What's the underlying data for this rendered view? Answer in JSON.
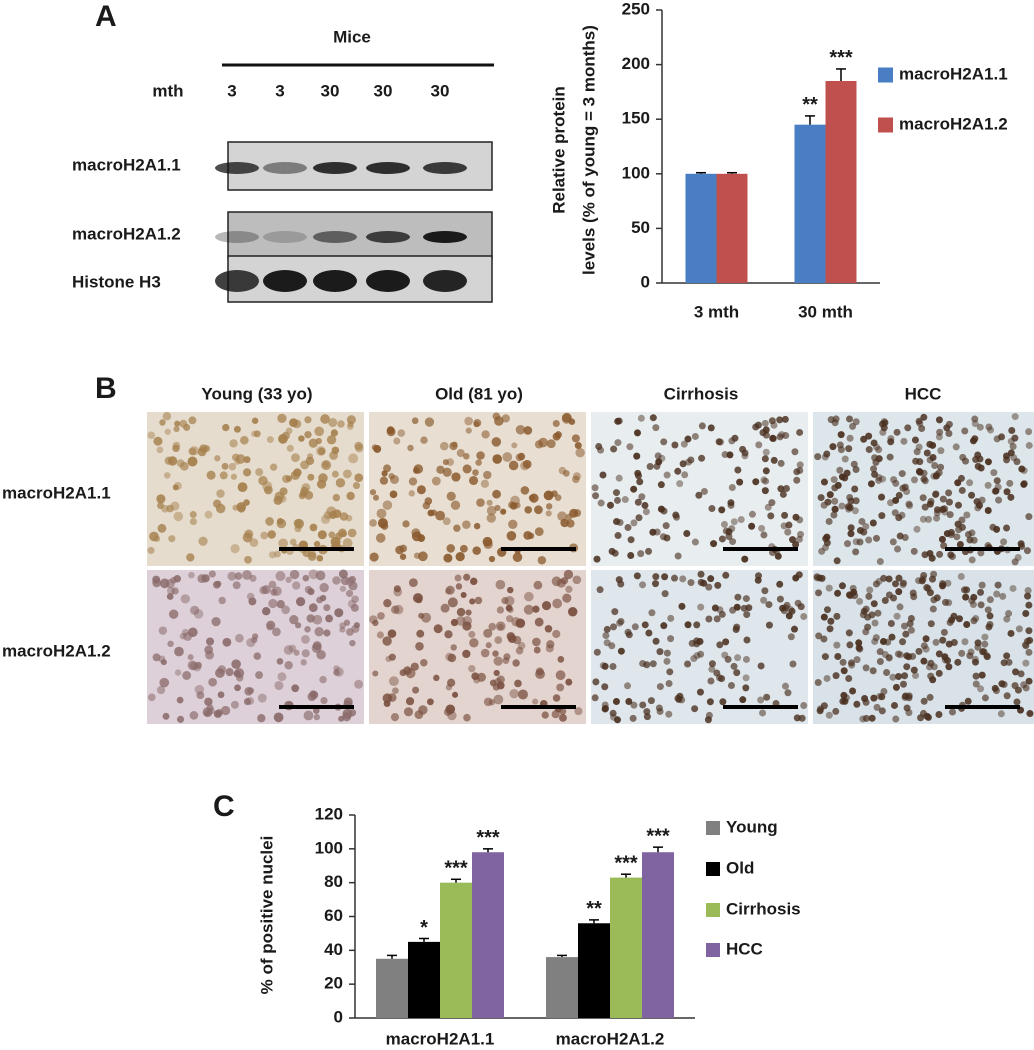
{
  "panel_a": {
    "label": "A",
    "group_header": "Mice",
    "lane_header": "mth",
    "lanes": [
      "3",
      "3",
      "30",
      "30",
      "30"
    ],
    "blot_rows": [
      "macroH2A1.1",
      "macroH2A1.2",
      "Histone H3"
    ]
  },
  "panel_b": {
    "label": "B",
    "columns": [
      "Young (33 yo)",
      "Old (81 yo)",
      "Cirrhosis",
      "HCC"
    ],
    "rows": [
      "macroH2A1.1",
      "macroH2A1.2"
    ]
  },
  "panel_c": {
    "label": "C"
  },
  "chart_data": [
    {
      "type": "bar",
      "y_label": [
        "Relative protein",
        "levels (% of young = 3 months)"
      ],
      "categories": [
        "3 mth",
        "30 mth"
      ],
      "series": [
        {
          "name": "macroH2A1.1",
          "color": "#4a7ec4",
          "values": [
            100,
            145
          ],
          "errors": [
            1,
            8
          ],
          "annotations": [
            null,
            "**"
          ]
        },
        {
          "name": "macroH2A1.2",
          "color": "#c0504d",
          "values": [
            100,
            185
          ],
          "errors": [
            1,
            11
          ],
          "annotations": [
            null,
            "***"
          ]
        }
      ],
      "ylim": [
        0,
        250
      ],
      "yticks": [
        0,
        50,
        100,
        150,
        200,
        250
      ],
      "legend": "right"
    },
    {
      "type": "bar",
      "y_label": [
        "% of positive nuclei"
      ],
      "categories": [
        "macroH2A1.1",
        "macroH2A1.2"
      ],
      "series": [
        {
          "name": "Young",
          "color": "#808080",
          "values": [
            35,
            36
          ],
          "errors": [
            2,
            1
          ],
          "annotations": [
            null,
            null
          ]
        },
        {
          "name": "Old",
          "color": "#000000",
          "values": [
            45,
            56
          ],
          "errors": [
            2,
            2
          ],
          "annotations": [
            "*",
            "**"
          ]
        },
        {
          "name": "Cirrhosis",
          "color": "#9bbb59",
          "values": [
            80,
            83
          ],
          "errors": [
            2,
            2
          ],
          "annotations": [
            "***",
            "***"
          ]
        },
        {
          "name": "HCC",
          "color": "#8064a2",
          "values": [
            98,
            98
          ],
          "errors": [
            2,
            3
          ],
          "annotations": [
            "***",
            "***"
          ]
        }
      ],
      "ylim": [
        0,
        120
      ],
      "yticks": [
        0,
        20,
        40,
        60,
        80,
        100,
        120
      ],
      "legend": "right"
    }
  ]
}
